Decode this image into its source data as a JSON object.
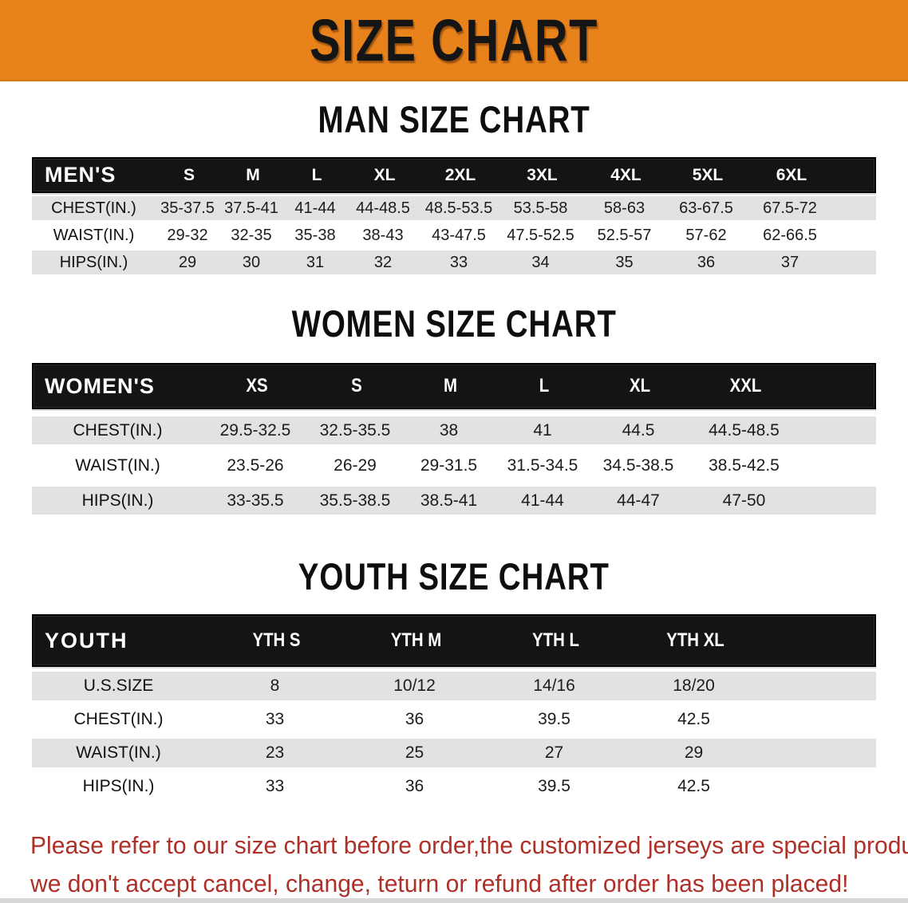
{
  "banner": {
    "title": "SIZE CHART",
    "bg_color": "#E8821B"
  },
  "colors": {
    "header_bar": "#141414",
    "row_gray": "#E2E2E2",
    "row_white": "#FFFFFF",
    "disclaimer_red": "#AD3129"
  },
  "men": {
    "heading": "MAN SIZE CHART",
    "corner_label": "MEN'S",
    "columns": [
      "S",
      "M",
      "L",
      "XL",
      "2XL",
      "3XL",
      "4XL",
      "5XL",
      "6XL"
    ],
    "rows": [
      {
        "label": "CHEST(IN.)",
        "values": [
          "35-37.5",
          "37.5-41",
          "41-44",
          "44-48.5",
          "48.5-53.5",
          "53.5-58",
          "58-63",
          "63-67.5",
          "67.5-72"
        ]
      },
      {
        "label": "WAIST(IN.)",
        "values": [
          "29-32",
          "32-35",
          "35-38",
          "38-43",
          "43-47.5",
          "47.5-52.5",
          "52.5-57",
          "57-62",
          "62-66.5"
        ]
      },
      {
        "label": "HIPS(IN.)",
        "values": [
          "29",
          "30",
          "31",
          "32",
          "33",
          "34",
          "35",
          "36",
          "37"
        ]
      }
    ]
  },
  "women": {
    "heading": "WOMEN SIZE CHART",
    "corner_label": "WOMEN'S",
    "columns": [
      "XS",
      "S",
      "M",
      "L",
      "XL",
      "XXL"
    ],
    "rows": [
      {
        "label": "CHEST(IN.)",
        "values": [
          "29.5-32.5",
          "32.5-35.5",
          "38",
          "41",
          "44.5",
          "44.5-48.5"
        ]
      },
      {
        "label": "WAIST(IN.)",
        "values": [
          "23.5-26",
          "26-29",
          "29-31.5",
          "31.5-34.5",
          "34.5-38.5",
          "38.5-42.5"
        ]
      },
      {
        "label": "HIPS(IN.)",
        "values": [
          "33-35.5",
          "35.5-38.5",
          "38.5-41",
          "41-44",
          "44-47",
          "47-50"
        ]
      }
    ]
  },
  "youth": {
    "heading": "YOUTH SIZE CHART",
    "corner_label": "YOUTH",
    "columns": [
      "YTH S",
      "YTH M",
      "YTH L",
      "YTH XL"
    ],
    "rows": [
      {
        "label": "U.S.SIZE",
        "values": [
          "8",
          "10/12",
          "14/16",
          "18/20"
        ]
      },
      {
        "label": "CHEST(IN.)",
        "values": [
          "33",
          "36",
          "39.5",
          "42.5"
        ]
      },
      {
        "label": "WAIST(IN.)",
        "values": [
          "23",
          "25",
          "27",
          "29"
        ]
      },
      {
        "label": "HIPS(IN.)",
        "values": [
          "33",
          "36",
          "39.5",
          "42.5"
        ]
      }
    ]
  },
  "disclaimer": {
    "line1": "Please refer to our size chart before order,the customized jerseys are special products,",
    "line2": "we don't accept cancel, change, teturn or refund after order has been placed!"
  }
}
